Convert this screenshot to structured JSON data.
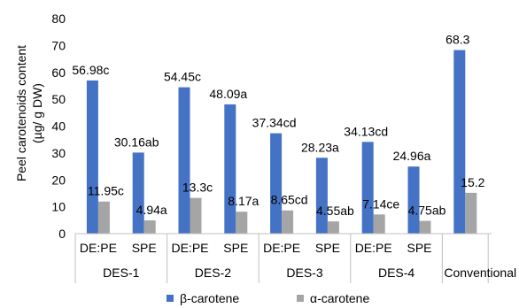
{
  "chart_data": {
    "type": "bar",
    "ylabel": [
      "Peel carotenoids content",
      "(µg/ g DW)"
    ],
    "ylim": [
      0,
      80
    ],
    "yticks": [
      0,
      10,
      20,
      30,
      40,
      50,
      60,
      70,
      80
    ],
    "grid": false,
    "legend_position": "bottom",
    "categories": [
      "DE:PE",
      "SPE",
      "DE:PE",
      "SPE",
      "DE:PE",
      "SPE",
      "DE:PE",
      "SPE",
      ""
    ],
    "groups": [
      {
        "label": "DES-1",
        "span": 2
      },
      {
        "label": "DES-2",
        "span": 2
      },
      {
        "label": "DES-3",
        "span": 2
      },
      {
        "label": "DES-4",
        "span": 2
      },
      {
        "label": "Conventional",
        "span": 1
      }
    ],
    "series": [
      {
        "name": "β-carotene",
        "color": "#4472C4",
        "values": [
          56.98,
          30.16,
          54.45,
          48.09,
          37.34,
          28.23,
          34.13,
          24.96,
          68.3
        ],
        "labels": [
          "56.98c",
          "30.16ab",
          "54.45c",
          "48.09a",
          "37.34cd",
          "28.23a",
          "34.13cd",
          "24.96a",
          "68.3"
        ]
      },
      {
        "name": "α-carotene",
        "color": "#A5A5A5",
        "values": [
          11.95,
          4.94,
          13.3,
          8.17,
          8.65,
          4.55,
          7.14,
          4.75,
          15.2
        ],
        "labels": [
          "11.95c",
          "4.94a",
          "13.3c",
          "8.17a",
          "8.65cd",
          "4.55ab",
          "7.14ce",
          "4.75ab",
          "15.2"
        ]
      }
    ]
  }
}
